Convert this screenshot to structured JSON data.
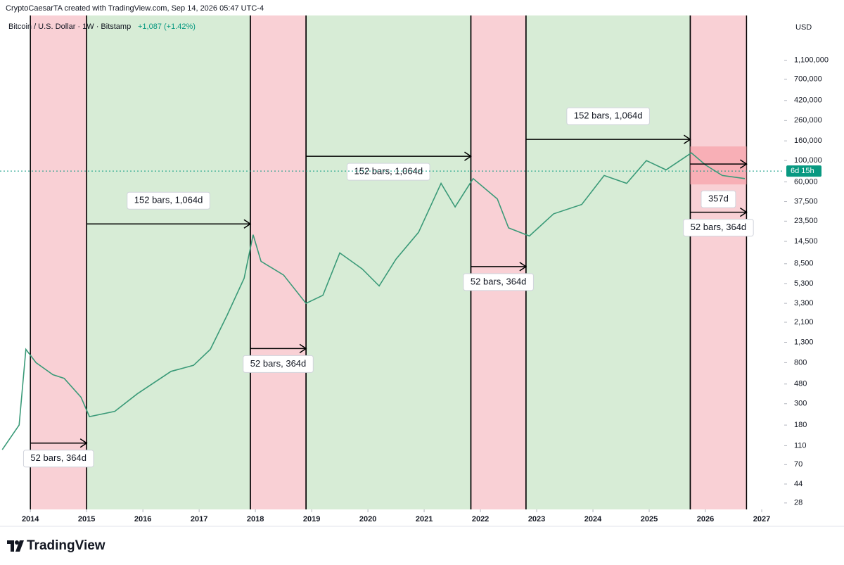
{
  "chart_data": {
    "type": "line",
    "header": "CryptoCaesarTA created with TradingView.com, Sep 14, 2026 05:47 UTC-4",
    "change": "+1,087 (+1.42%)",
    "currency": "USD",
    "brand": "TradingView",
    "log_scale": true,
    "x": [
      2013.5,
      2013.8,
      2013.92,
      2014.1,
      2014.4,
      2014.6,
      2014.9,
      2015.05,
      2015.5,
      2015.9,
      2016.5,
      2016.9,
      2017.2,
      2017.5,
      2017.8,
      2017.96,
      2018.1,
      2018.5,
      2018.9,
      2019.2,
      2019.5,
      2019.9,
      2020.2,
      2020.5,
      2020.9,
      2021.3,
      2021.55,
      2021.87,
      2022.3,
      2022.5,
      2022.87,
      2023.3,
      2023.8,
      2024.2,
      2024.6,
      2024.95,
      2025.3,
      2025.75,
      2026.0,
      2026.3,
      2026.7
    ],
    "series": [
      {
        "name": "Bitcoin / U.S. Dollar · 1W · Bitstamp",
        "color": "#3a9a78",
        "values": [
          100,
          180,
          1100,
          800,
          600,
          550,
          350,
          220,
          250,
          380,
          650,
          750,
          1100,
          2500,
          6000,
          17000,
          9000,
          6500,
          3300,
          4000,
          11000,
          7500,
          5000,
          9500,
          18000,
          58000,
          33000,
          65000,
          40000,
          20000,
          16500,
          28000,
          35000,
          70000,
          58000,
          100000,
          80000,
          120000,
          90000,
          70000,
          65000
        ]
      }
    ],
    "last_price": 77700,
    "last_price_label": "6d 15h",
    "xlim": [
      2013.46,
      2027.4
    ],
    "xticks": [
      2014,
      2015,
      2016,
      2017,
      2018,
      2019,
      2020,
      2021,
      2022,
      2023,
      2024,
      2025,
      2026,
      2027
    ],
    "ylim": [
      24,
      3200000
    ],
    "yticks": [
      {
        "value": 1100000,
        "label": "1,100,000"
      },
      {
        "value": 700000,
        "label": "700,000"
      },
      {
        "value": 420000,
        "label": "420,000"
      },
      {
        "value": 260000,
        "label": "260,000"
      },
      {
        "value": 160000,
        "label": "160,000"
      },
      {
        "value": 100000,
        "label": "100,000"
      },
      {
        "value": 60000,
        "label": "60,000"
      },
      {
        "value": 37500,
        "label": "37,500"
      },
      {
        "value": 23500,
        "label": "23,500"
      },
      {
        "value": 14500,
        "label": "14,500"
      },
      {
        "value": 8500,
        "label": "8,500"
      },
      {
        "value": 5300,
        "label": "5,300"
      },
      {
        "value": 3300,
        "label": "3,300"
      },
      {
        "value": 2100,
        "label": "2,100"
      },
      {
        "value": 1300,
        "label": "1,300"
      },
      800,
      480,
      300,
      180,
      110,
      70,
      44,
      28
    ],
    "bands": [
      {
        "x": [
          2014.0,
          2015.0
        ],
        "color": "#f9d0d5"
      },
      {
        "x": [
          2015.0,
          2017.91
        ],
        "color": "#d7ecd6"
      },
      {
        "x": [
          2017.91,
          2018.9
        ],
        "color": "#f9d0d5"
      },
      {
        "x": [
          2018.9,
          2021.83
        ],
        "color": "#d7ecd6"
      },
      {
        "x": [
          2021.83,
          2022.81
        ],
        "color": "#f9d0d5"
      },
      {
        "x": [
          2022.81,
          2025.73
        ],
        "color": "#d7ecd6"
      },
      {
        "x": [
          2025.73,
          2026.73
        ],
        "color": "#f9d0d5"
      }
    ],
    "measures": [
      {
        "label": "52 bars, 364d",
        "x": [
          2014.0,
          2015.0
        ],
        "y": 117,
        "label_position": "below"
      },
      {
        "label": "152 bars, 1,064d",
        "x": [
          2015.0,
          2017.91
        ],
        "y": 22000,
        "label_position": "above"
      },
      {
        "label": "52 bars, 364d",
        "x": [
          2017.91,
          2018.9
        ],
        "y": 1120,
        "label_position": "below"
      },
      {
        "label": "152 bars, 1,064d",
        "x": [
          2018.9,
          2021.83
        ],
        "y": 110600,
        "label_position": "below"
      },
      {
        "label": "52 bars, 364d",
        "x": [
          2021.83,
          2022.81
        ],
        "y": 7940,
        "label_position": "below"
      },
      {
        "label": "152 bars, 1,064d",
        "x": [
          2022.81,
          2025.73
        ],
        "y": 165700,
        "label_position": "above"
      },
      {
        "label": "52 bars, 364d",
        "x": [
          2025.73,
          2026.73
        ],
        "y": 29100,
        "label_position": "below"
      }
    ],
    "range_box": {
      "x": [
        2025.73,
        2026.73
      ],
      "y": [
        56500,
        140000
      ],
      "arrow_y": 92000,
      "label": "357d",
      "color": "#f7a6ae"
    }
  }
}
